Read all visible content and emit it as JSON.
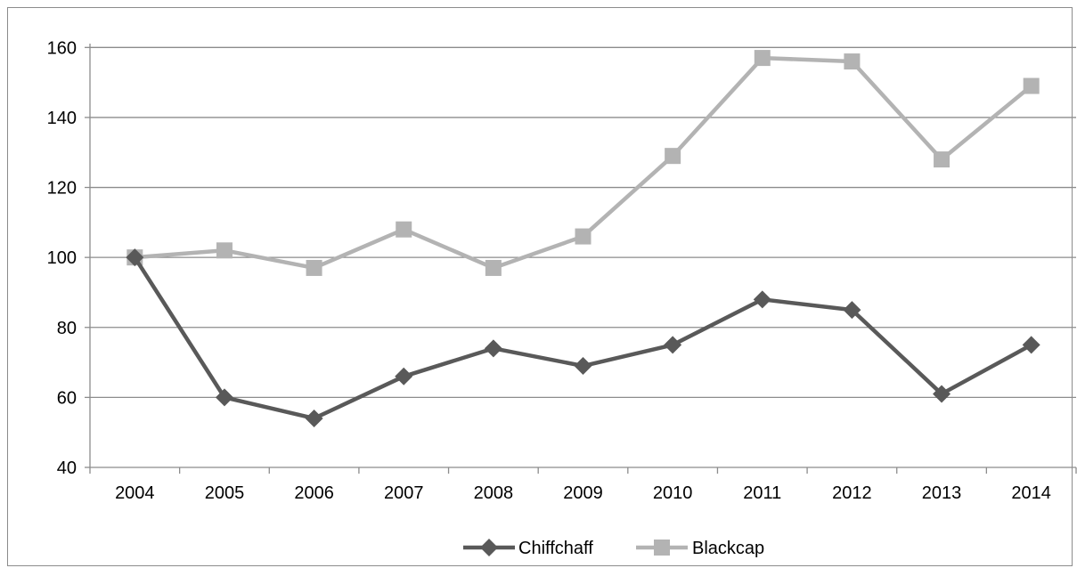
{
  "chart_data": {
    "type": "line",
    "title": "",
    "xlabel": "",
    "ylabel": "",
    "categories": [
      "2004",
      "2005",
      "2006",
      "2007",
      "2008",
      "2009",
      "2010",
      "2011",
      "2012",
      "2013",
      "2014"
    ],
    "ylim": [
      40,
      170
    ],
    "yticks": [
      40,
      60,
      80,
      100,
      120,
      140,
      160
    ],
    "grid": true,
    "legend": "bottom",
    "series": [
      {
        "name": "Chiffchaff",
        "marker": "diamond",
        "color": "#595959",
        "values": [
          100,
          60,
          54,
          66,
          74,
          69,
          75,
          88,
          85,
          61,
          75
        ]
      },
      {
        "name": "Blackcap",
        "marker": "square",
        "color": "#b3b3b3",
        "values": [
          100,
          102,
          97,
          108,
          97,
          106,
          129,
          157,
          156,
          128,
          149
        ]
      }
    ]
  }
}
